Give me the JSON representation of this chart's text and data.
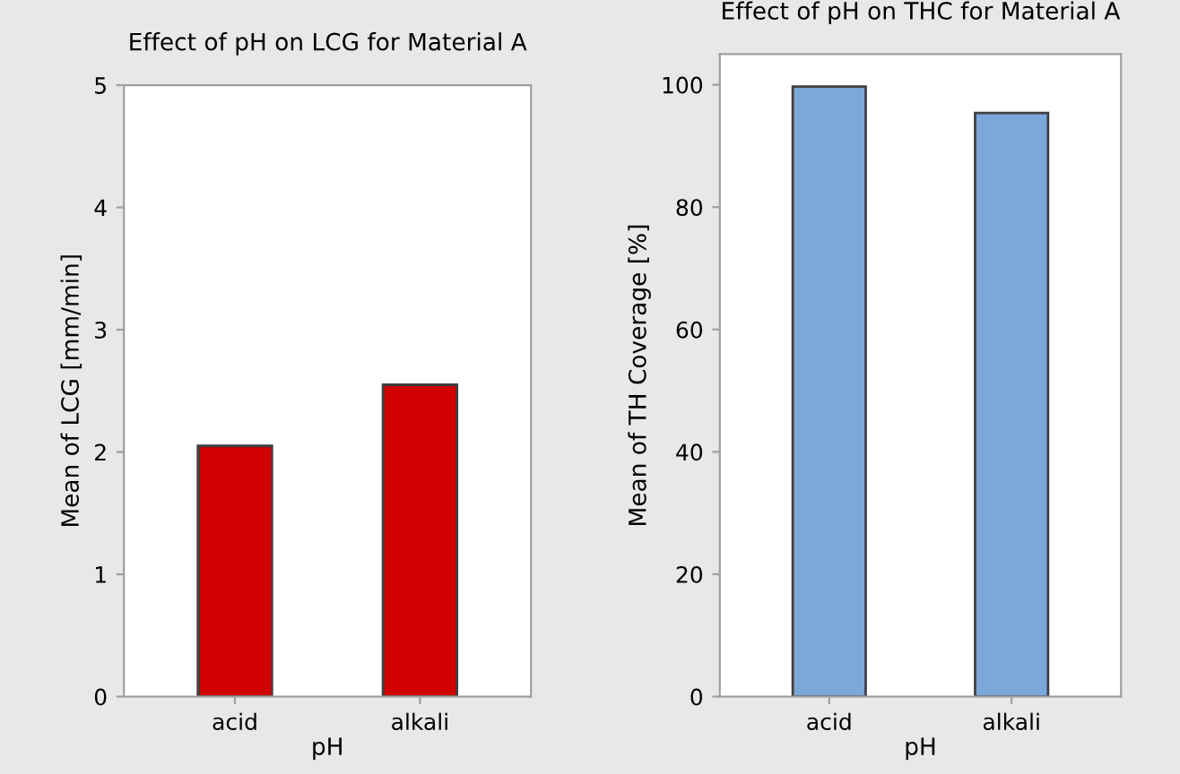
{
  "chart_data": [
    {
      "type": "bar",
      "title": "Effect of pH on LCG for Material A",
      "xlabel": "pH",
      "ylabel": "Mean of LCG [mm/min]",
      "categories": [
        "acid",
        "alkali"
      ],
      "values": [
        2.05,
        2.55
      ],
      "color": "#d00000",
      "ylim": [
        0,
        5
      ],
      "yticks": [
        0,
        1,
        2,
        3,
        4,
        5
      ],
      "grid": false,
      "legend": false
    },
    {
      "type": "bar",
      "title": "Effect of pH on THC for Material A",
      "xlabel": "pH",
      "ylabel": "Mean of TH Coverage [%]",
      "categories": [
        "acid",
        "alkali"
      ],
      "values": [
        99.7,
        95.4
      ],
      "color": "#7ba7d9",
      "ylim": [
        0,
        105
      ],
      "yticks": [
        0,
        20,
        40,
        60,
        80,
        100
      ],
      "grid": false,
      "legend": false
    }
  ]
}
